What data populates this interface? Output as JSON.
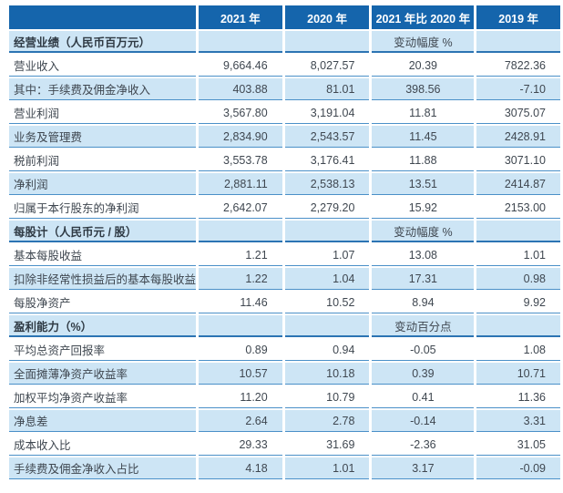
{
  "colors": {
    "header_bg": "#1565ac",
    "header_text": "#ffffff",
    "shaded_row_bg": "#cde5f5",
    "row_border": "#4a90c8",
    "section_border": "#2c74b3",
    "body_text": "#3f4750",
    "section_text": "#2f3a44"
  },
  "table": {
    "columns": [
      "",
      "2021 年",
      "2020 年",
      "2021 年比 2020 年",
      "2019 年"
    ],
    "rows": [
      {
        "type": "section",
        "label": "经营业绩（人民币百万元）",
        "note": "变动幅度 %"
      },
      {
        "type": "data",
        "label": "营业收入",
        "y2021": "9,664.46",
        "y2020": "8,027.57",
        "change": "20.39",
        "y2019": "7822.36"
      },
      {
        "type": "data",
        "label": "其中：手续费及佣金净收入",
        "y2021": "403.88",
        "y2020": "81.01",
        "change": "398.56",
        "y2019": "-7.10"
      },
      {
        "type": "data",
        "label": "营业利润",
        "y2021": "3,567.80",
        "y2020": "3,191.04",
        "change": "11.81",
        "y2019": "3075.07"
      },
      {
        "type": "data",
        "label": "业务及管理费",
        "y2021": "2,834.90",
        "y2020": "2,543.57",
        "change": "11.45",
        "y2019": "2428.91"
      },
      {
        "type": "data",
        "label": "税前利润",
        "y2021": "3,553.78",
        "y2020": "3,176.41",
        "change": "11.88",
        "y2019": "3071.10"
      },
      {
        "type": "data",
        "label": "净利润",
        "y2021": "2,881.11",
        "y2020": "2,538.13",
        "change": "13.51",
        "y2019": "2414.87"
      },
      {
        "type": "data",
        "label": "归属于本行股东的净利润",
        "y2021": "2,642.07",
        "y2020": "2,279.20",
        "change": "15.92",
        "y2019": "2153.00"
      },
      {
        "type": "section",
        "label": "每股计（人民币元 / 股）",
        "note": "变动幅度 %"
      },
      {
        "type": "data",
        "label": "基本每股收益",
        "y2021": "1.21",
        "y2020": "1.07",
        "change": "13.08",
        "y2019": "1.01"
      },
      {
        "type": "data",
        "label": "扣除非经常性损益后的基本每股收益",
        "y2021": "1.22",
        "y2020": "1.04",
        "change": "17.31",
        "y2019": "0.98"
      },
      {
        "type": "data",
        "label": "每股净资产",
        "y2021": "11.46",
        "y2020": "10.52",
        "change": "8.94",
        "y2019": "9.92"
      },
      {
        "type": "section",
        "label": "盈利能力（%）",
        "note": "变动百分点"
      },
      {
        "type": "data",
        "label": "平均总资产回报率",
        "y2021": "0.89",
        "y2020": "0.94",
        "change": "-0.05",
        "y2019": "1.08"
      },
      {
        "type": "data",
        "label": "全面摊薄净资产收益率",
        "y2021": "10.57",
        "y2020": "10.18",
        "change": "0.39",
        "y2019": "10.71"
      },
      {
        "type": "data",
        "label": "加权平均净资产收益率",
        "y2021": "11.20",
        "y2020": "10.79",
        "change": "0.41",
        "y2019": "11.36"
      },
      {
        "type": "data",
        "label": "净息差",
        "y2021": "2.64",
        "y2020": "2.78",
        "change": "-0.14",
        "y2019": "3.31"
      },
      {
        "type": "data",
        "label": "成本收入比",
        "y2021": "29.33",
        "y2020": "31.69",
        "change": "-2.36",
        "y2019": "31.05"
      },
      {
        "type": "data",
        "label": "手续费及佣金净收入占比",
        "y2021": "4.18",
        "y2020": "1.01",
        "change": "3.17",
        "y2019": "-0.09"
      }
    ]
  }
}
